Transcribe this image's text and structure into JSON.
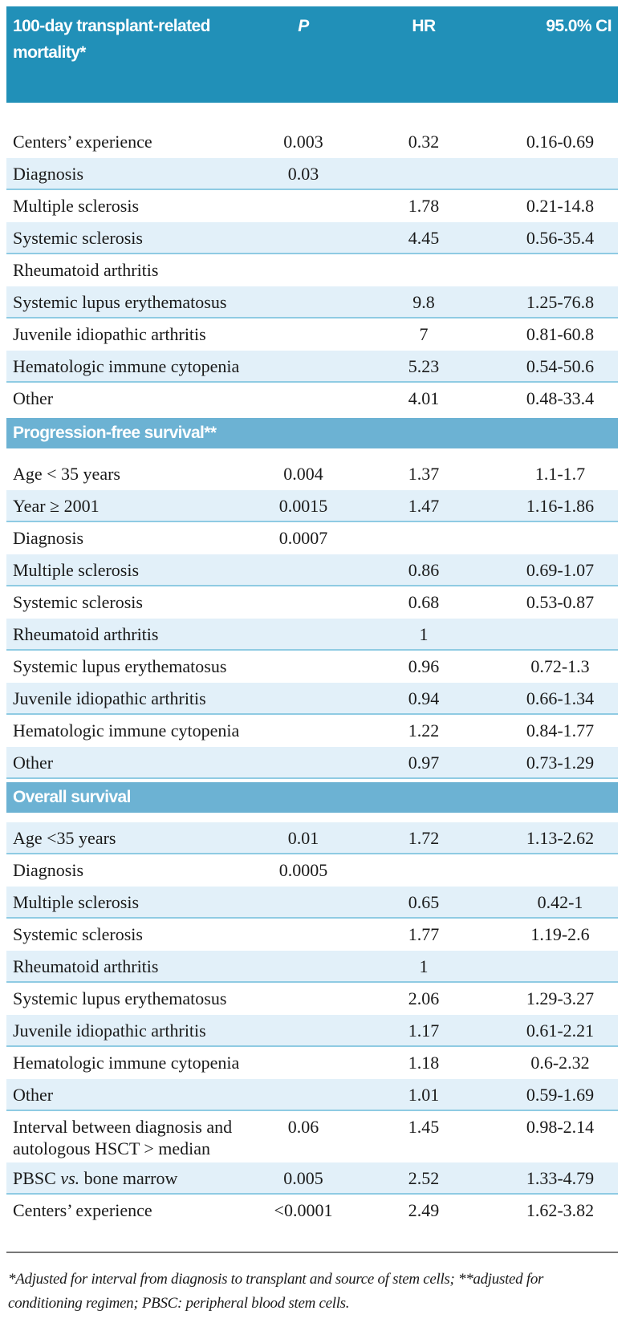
{
  "header": {
    "title": "100-day transplant-related mortality*",
    "col_p": "P",
    "col_hr": "HR",
    "col_ci": "95.0% CI"
  },
  "colors": {
    "header_bg": "#2190b8",
    "section_bg": "#6cb2d3",
    "row_shade": "#e2f0f9",
    "row_border": "#8fcbe3"
  },
  "sections": [
    {
      "title": "",
      "rows": [
        {
          "label": "Centers’ experience",
          "p": "0.003",
          "hr": "0.32",
          "ci": "0.16-0.69",
          "shaded": false
        },
        {
          "label": "Diagnosis",
          "p": "0.03",
          "hr": "",
          "ci": "",
          "shaded": true
        },
        {
          "label": "Multiple sclerosis",
          "p": "",
          "hr": "1.78",
          "ci": "0.21-14.8",
          "shaded": false
        },
        {
          "label": "Systemic sclerosis",
          "p": "",
          "hr": "4.45",
          "ci": "0.56-35.4",
          "shaded": true
        },
        {
          "label": "Rheumatoid arthritis",
          "p": "",
          "hr": "",
          "ci": "",
          "shaded": false
        },
        {
          "label": "Systemic lupus erythematosus",
          "p": "",
          "hr": "9.8",
          "ci": "1.25-76.8",
          "shaded": true
        },
        {
          "label": "Juvenile idiopathic arthritis",
          "p": "",
          "hr": "7",
          "ci": "0.81-60.8",
          "shaded": false
        },
        {
          "label": "Hematologic immune cytopenia",
          "p": "",
          "hr": "5.23",
          "ci": "0.54-50.6",
          "shaded": true
        },
        {
          "label": "Other",
          "p": "",
          "hr": "4.01",
          "ci": "0.48-33.4",
          "shaded": false
        }
      ]
    },
    {
      "title": "Progression-free survival**",
      "rows": [
        {
          "label": "Age < 35 years",
          "p": "0.004",
          "hr": "1.37",
          "ci": "1.1-1.7",
          "shaded": false
        },
        {
          "label": "Year ≥ 2001",
          "p": "0.0015",
          "hr": "1.47",
          "ci": "1.16-1.86",
          "shaded": true
        },
        {
          "label": "Diagnosis",
          "p": "0.0007",
          "hr": "",
          "ci": "",
          "shaded": false
        },
        {
          "label": "Multiple sclerosis",
          "p": "",
          "hr": "0.86",
          "ci": "0.69-1.07",
          "shaded": true
        },
        {
          "label": "Systemic sclerosis",
          "p": "",
          "hr": "0.68",
          "ci": "0.53-0.87",
          "shaded": false
        },
        {
          "label": "Rheumatoid arthritis",
          "p": "",
          "hr": "1",
          "ci": "",
          "shaded": true
        },
        {
          "label": "Systemic lupus erythematosus",
          "p": "",
          "hr": "0.96",
          "ci": "0.72-1.3",
          "shaded": false
        },
        {
          "label": "Juvenile idiopathic arthritis",
          "p": "",
          "hr": "0.94",
          "ci": "0.66-1.34",
          "shaded": true
        },
        {
          "label": "Hematologic immune cytopenia",
          "p": "",
          "hr": "1.22",
          "ci": "0.84-1.77",
          "shaded": false
        },
        {
          "label": "Other",
          "p": "",
          "hr": "0.97",
          "ci": "0.73-1.29",
          "shaded": true
        }
      ]
    },
    {
      "title": "Overall survival",
      "rows": [
        {
          "label": "Age <35 years",
          "p": "0.01",
          "hr": "1.72",
          "ci": "1.13-2.62",
          "shaded": true
        },
        {
          "label": "Diagnosis",
          "p": "0.0005",
          "hr": "",
          "ci": "",
          "shaded": false
        },
        {
          "label": "Multiple sclerosis",
          "p": "",
          "hr": "0.65",
          "ci": "0.42-1",
          "shaded": true
        },
        {
          "label": "Systemic sclerosis",
          "p": "",
          "hr": "1.77",
          "ci": "1.19-2.6",
          "shaded": false
        },
        {
          "label": "Rheumatoid arthritis",
          "p": "",
          "hr": "1",
          "ci": "",
          "shaded": true
        },
        {
          "label": "Systemic lupus erythematosus",
          "p": "",
          "hr": "2.06",
          "ci": "1.29-3.27",
          "shaded": false
        },
        {
          "label": "Juvenile idiopathic arthritis",
          "p": "",
          "hr": "1.17",
          "ci": "0.61-2.21",
          "shaded": true
        },
        {
          "label": "Hematologic immune cytopenia",
          "p": "",
          "hr": "1.18",
          "ci": "0.6-2.32",
          "shaded": false
        },
        {
          "label": "Other",
          "p": "",
          "hr": "1.01",
          "ci": "0.59-1.69",
          "shaded": true
        },
        {
          "label": "Interval between diagnosis and autologous HSCT > median",
          "p": "0.06",
          "hr": "1.45",
          "ci": "0.98-2.14",
          "shaded": false,
          "tall": true
        },
        {
          "label_pre": "PBSC ",
          "label_em": "vs.",
          "label_post": " bone marrow",
          "p": "0.005",
          "hr": "2.52",
          "ci": "1.33-4.79",
          "shaded": true
        },
        {
          "label": "Centers’ experience",
          "p": "<0.0001",
          "hr": "2.49",
          "ci": "1.62-3.82",
          "shaded": false
        }
      ]
    }
  ],
  "footnote": "*Adjusted for interval from diagnosis to transplant and source of stem cells; **adjusted for conditioning regimen; PBSC: peripheral blood stem cells."
}
